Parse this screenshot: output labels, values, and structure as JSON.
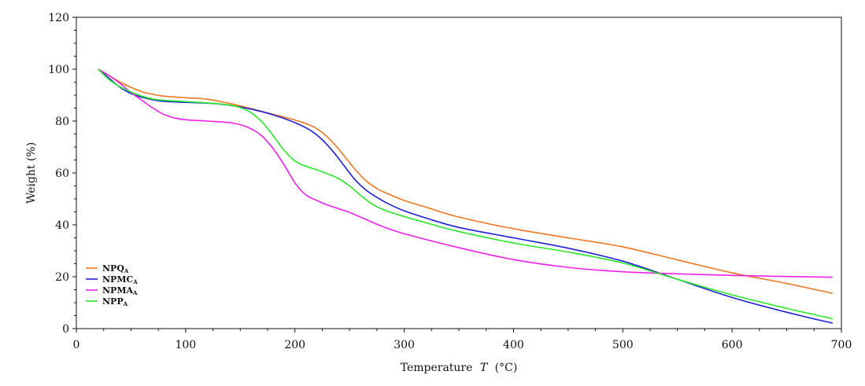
{
  "chart_data": {
    "type": "line",
    "title": "",
    "xlabel": "Temperature",
    "xlabel_var": "T",
    "xlabel_unit": "(°C)",
    "ylabel": "Weight (%)",
    "xlim": [
      0,
      700
    ],
    "ylim": [
      0,
      120
    ],
    "xticks": [
      "0",
      "100",
      "200",
      "300",
      "400",
      "500",
      "600",
      "700"
    ],
    "yticks": [
      "0",
      "20",
      "40",
      "60",
      "80",
      "100",
      "120"
    ],
    "legend_position": "bottom-left",
    "grid": false,
    "series": [
      {
        "name": "NPQ",
        "subscript": "A",
        "color": "#f07820",
        "x": [
          20,
          30,
          40,
          50,
          60,
          70,
          80,
          100,
          120,
          140,
          160,
          180,
          200,
          215,
          225,
          235,
          245,
          255,
          265,
          275,
          285,
          300,
          320,
          350,
          400,
          450,
          500,
          550,
          600,
          650,
          692
        ],
        "y": [
          100,
          97.5,
          95,
          93,
          91.3,
          90.3,
          89.6,
          89,
          88.4,
          86.8,
          84.8,
          82.6,
          80.4,
          78.2,
          75.6,
          71.6,
          66.6,
          61.4,
          57,
          54,
          52,
          49.4,
          46.8,
          43,
          38.5,
          35,
          31.5,
          26.5,
          21.5,
          17.4,
          13.6
        ]
      },
      {
        "name": "NPMC",
        "subscript": "A",
        "color": "#1f20d8",
        "x": [
          20,
          30,
          40,
          50,
          60,
          70,
          80,
          100,
          120,
          140,
          160,
          180,
          200,
          215,
          225,
          235,
          245,
          255,
          265,
          275,
          285,
          300,
          320,
          350,
          400,
          450,
          500,
          550,
          600,
          650,
          692
        ],
        "y": [
          100,
          96.5,
          93,
          90.6,
          89.2,
          88.2,
          87.6,
          87.2,
          86.9,
          86.1,
          84.6,
          82.4,
          79.4,
          76.2,
          72.8,
          68.2,
          62.8,
          57.4,
          53.4,
          50.6,
          48.2,
          45.4,
          42.6,
          39,
          35,
          31,
          26,
          19,
          12,
          6.3,
          2.1
        ]
      },
      {
        "name": "NPMA",
        "subscript": "A",
        "color": "#f020e8",
        "x": [
          20,
          30,
          40,
          50,
          60,
          70,
          80,
          90,
          100,
          120,
          140,
          150,
          160,
          170,
          180,
          190,
          200,
          210,
          220,
          230,
          240,
          250,
          260,
          280,
          300,
          350,
          400,
          450,
          500,
          550,
          600,
          650,
          692
        ],
        "y": [
          100,
          97.5,
          94.5,
          91,
          88,
          85,
          82.6,
          81.2,
          80.5,
          80,
          79.4,
          78.6,
          77,
          74.2,
          69.4,
          63.2,
          56.2,
          51.5,
          49.4,
          47.6,
          46.2,
          44.8,
          43,
          39.4,
          36.6,
          31.2,
          26.6,
          23.6,
          21.9,
          21.1,
          20.5,
          20.1,
          19.8
        ]
      },
      {
        "name": "NPP",
        "subscript": "A",
        "color": "#28e828",
        "x": [
          20,
          30,
          40,
          50,
          60,
          70,
          80,
          100,
          120,
          140,
          150,
          160,
          170,
          180,
          190,
          200,
          210,
          220,
          230,
          240,
          250,
          260,
          270,
          280,
          300,
          320,
          350,
          400,
          450,
          500,
          550,
          600,
          650,
          692
        ],
        "y": [
          100,
          96,
          93.2,
          91.2,
          89.6,
          88.5,
          88,
          87.5,
          87,
          86.2,
          85.2,
          83.2,
          79.6,
          74.4,
          68.8,
          64.6,
          62.6,
          61.2,
          59.6,
          57.8,
          55,
          51.4,
          48.2,
          46,
          43.2,
          40.8,
          37.4,
          33,
          29.5,
          25.3,
          19,
          13,
          7.8,
          3.8
        ]
      }
    ]
  }
}
